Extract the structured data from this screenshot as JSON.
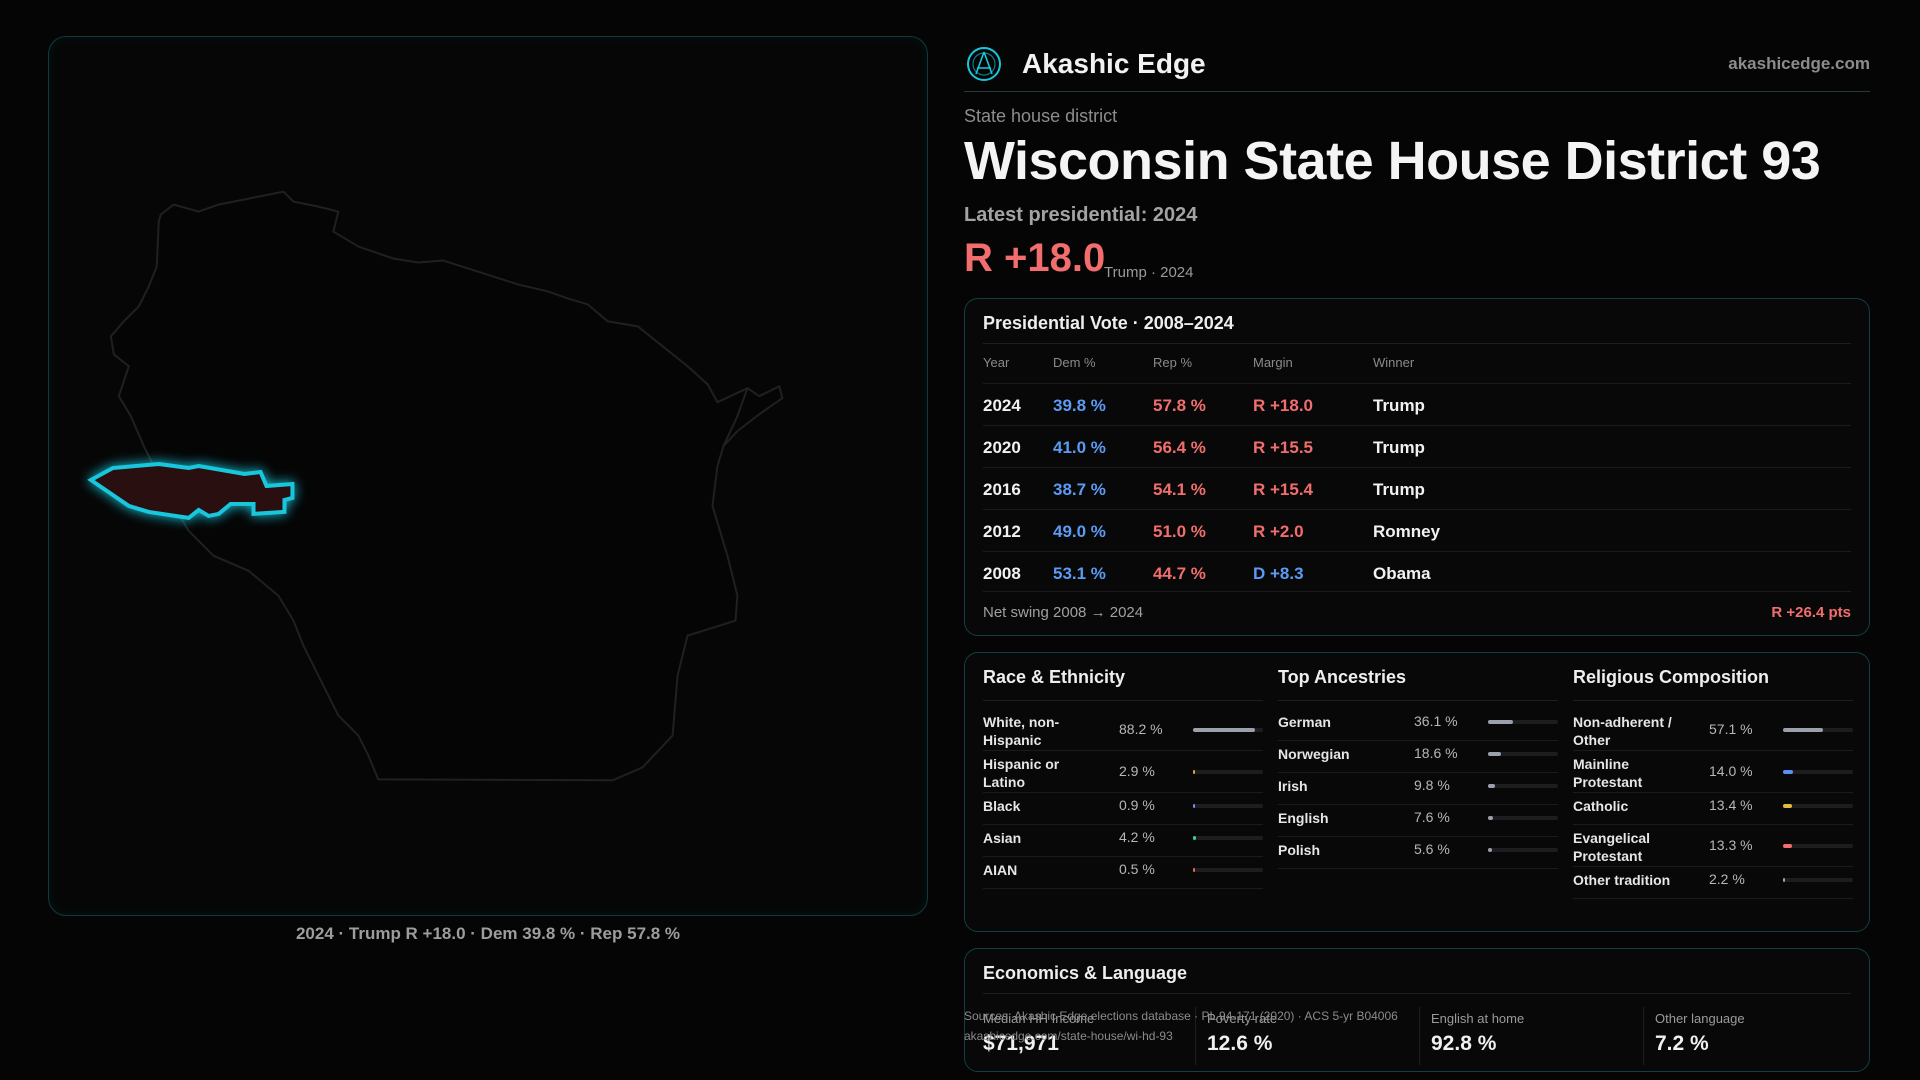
{
  "map": {
    "caption": "2024 · Trump R +18.0 · Dem 39.8 % · Rep 57.8 %",
    "colors": {
      "outline": "#1d1d1f",
      "district_stroke": "#19c7dd",
      "district_fill": "#2a0f10"
    }
  },
  "brand": {
    "name": "Akashic Edge",
    "url": "akashicedge.com"
  },
  "header": {
    "eyebrow": "State house district",
    "title": "Wisconsin State House District 93",
    "latest_label": "Latest presidential: 2024",
    "margin": "R +18.0",
    "margin_sub": "Trump · 2024"
  },
  "presidential": {
    "title": "Presidential Vote · 2008–2024",
    "columns": [
      "Year",
      "Dem %",
      "Rep %",
      "Margin",
      "Winner"
    ],
    "rows": [
      {
        "year": "2024",
        "dem": "39.8 %",
        "rep": "57.8 %",
        "margin": "R +18.0",
        "winner": "Trump",
        "party": "R"
      },
      {
        "year": "2020",
        "dem": "41.0 %",
        "rep": "56.4 %",
        "margin": "R +15.5",
        "winner": "Trump",
        "party": "R"
      },
      {
        "year": "2016",
        "dem": "38.7 %",
        "rep": "54.1 %",
        "margin": "R +15.4",
        "winner": "Trump",
        "party": "R"
      },
      {
        "year": "2012",
        "dem": "49.0 %",
        "rep": "51.0 %",
        "margin": "R +2.0",
        "winner": "Romney",
        "party": "R"
      },
      {
        "year": "2008",
        "dem": "53.1 %",
        "rep": "44.7 %",
        "margin": "D +8.3",
        "winner": "Obama",
        "party": "D"
      }
    ],
    "swing_label": "Net swing 2008 → 2024",
    "swing_value": "R +26.4 pts"
  },
  "race": {
    "title": "Race & Ethnicity",
    "items": [
      {
        "label": "White, non-Hispanic",
        "value": "88.2 %",
        "pct": 88.2,
        "color": "#9aa1ab"
      },
      {
        "label": "Hispanic or Latino",
        "value": "2.9 %",
        "pct": 2.9,
        "color": "#e0a03a"
      },
      {
        "label": "Black",
        "value": "0.9 %",
        "pct": 0.9,
        "color": "#6e8ef0"
      },
      {
        "label": "Asian",
        "value": "4.2 %",
        "pct": 4.2,
        "color": "#3ecf8e"
      },
      {
        "label": "AIAN",
        "value": "0.5 %",
        "pct": 0.5,
        "color": "#d9704a"
      }
    ]
  },
  "ancestry": {
    "title": "Top Ancestries",
    "items": [
      {
        "label": "German",
        "value": "36.1 %",
        "pct": 36.1,
        "color": "#9aa1ab"
      },
      {
        "label": "Norwegian",
        "value": "18.6 %",
        "pct": 18.6,
        "color": "#9aa1ab"
      },
      {
        "label": "Irish",
        "value": "9.8 %",
        "pct": 9.8,
        "color": "#9aa1ab"
      },
      {
        "label": "English",
        "value": "7.6 %",
        "pct": 7.6,
        "color": "#9aa1ab"
      },
      {
        "label": "Polish",
        "value": "5.6 %",
        "pct": 5.6,
        "color": "#9aa1ab"
      }
    ]
  },
  "religion": {
    "title": "Religious Composition",
    "items": [
      {
        "label": "Non-adherent / Other",
        "value": "57.1 %",
        "pct": 57.1,
        "color": "#9aa1ab"
      },
      {
        "label": "Mainline Protestant",
        "value": "14.0 %",
        "pct": 14.0,
        "color": "#5b8ef5"
      },
      {
        "label": "Catholic",
        "value": "13.4 %",
        "pct": 13.4,
        "color": "#e8b83a"
      },
      {
        "label": "Evangelical Protestant",
        "value": "13.3 %",
        "pct": 13.3,
        "color": "#f26d6d"
      },
      {
        "label": "Other tradition",
        "value": "2.2 %",
        "pct": 2.2,
        "color": "#9aa1ab"
      }
    ]
  },
  "economics": {
    "title": "Economics & Language",
    "stats": [
      {
        "label": "Median HH Income",
        "value": "$71,971"
      },
      {
        "label": "Poverty rate",
        "value": "12.6 %"
      },
      {
        "label": "English at home",
        "value": "92.8 %"
      },
      {
        "label": "Other language",
        "value": "7.2 %"
      }
    ]
  },
  "sources": {
    "line1": "Sources: Akashic Edge elections database · PL 94-171 (2020) · ACS 5-yr B04006",
    "line2": "akashicedge.com/state-house/wi-hd-93"
  },
  "colors": {
    "dem": "#5b9bf5",
    "rep": "#f26d6d",
    "accent": "#19c7dd"
  }
}
